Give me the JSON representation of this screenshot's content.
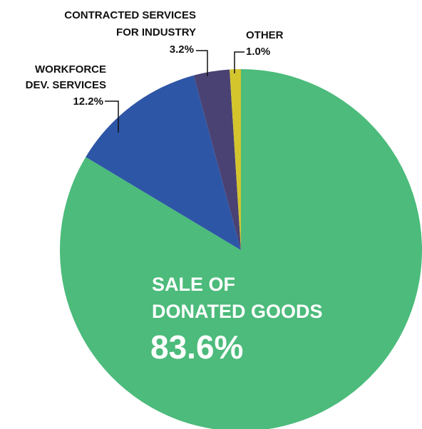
{
  "chart_data": {
    "type": "pie",
    "title": "",
    "slices": [
      {
        "name_lines": [
          "SALE OF",
          "DONATED GOODS"
        ],
        "value": 83.6,
        "label": "83.6%",
        "color": "#4cbb7b"
      },
      {
        "name_lines": [
          "WORKFORCE",
          "DEV. SERVICES"
        ],
        "value": 12.2,
        "label": "12.2%",
        "color": "#2e56a6"
      },
      {
        "name_lines": [
          "CONTRACTED SERVICES",
          "FOR  INDUSTRY"
        ],
        "value": 3.2,
        "label": "3.2%",
        "color": "#4a4273"
      },
      {
        "name_lines": [
          "OTHER"
        ],
        "value": 1.0,
        "label": "1.0%",
        "color": "#d4c52d"
      }
    ]
  }
}
